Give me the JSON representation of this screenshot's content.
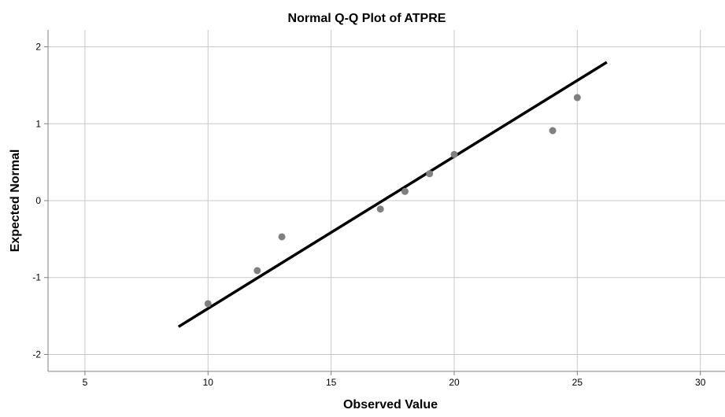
{
  "chart_data": {
    "type": "scatter",
    "title": "Normal Q-Q Plot of ATPRE",
    "xlabel": "Observed Value",
    "ylabel": "Expected Normal",
    "xlim": [
      3.5,
      31
    ],
    "ylim": [
      -2.22,
      2.22
    ],
    "x_ticks": [
      5,
      10,
      15,
      20,
      25,
      30
    ],
    "y_ticks": [
      -2,
      -1,
      0,
      1,
      2
    ],
    "x_tick_labels": [
      "5",
      "10",
      "15",
      "20",
      "25",
      "30"
    ],
    "y_tick_labels": [
      "-2",
      "-1",
      "0",
      "1",
      "2"
    ],
    "grid": true,
    "points": [
      {
        "x": 10,
        "y": -1.34
      },
      {
        "x": 12,
        "y": -0.91
      },
      {
        "x": 13,
        "y": -0.47
      },
      {
        "x": 17,
        "y": -0.11
      },
      {
        "x": 18,
        "y": 0.12
      },
      {
        "x": 19,
        "y": 0.35
      },
      {
        "x": 20,
        "y": 0.6
      },
      {
        "x": 24,
        "y": 0.91
      },
      {
        "x": 25,
        "y": 1.34
      }
    ],
    "reference_line": {
      "x": [
        8.8,
        26.2
      ],
      "y": [
        -1.64,
        1.8
      ]
    },
    "colors": {
      "points": "#808080",
      "line": "#000000",
      "grid": "#c8c8c8",
      "axis": "#808080"
    }
  }
}
